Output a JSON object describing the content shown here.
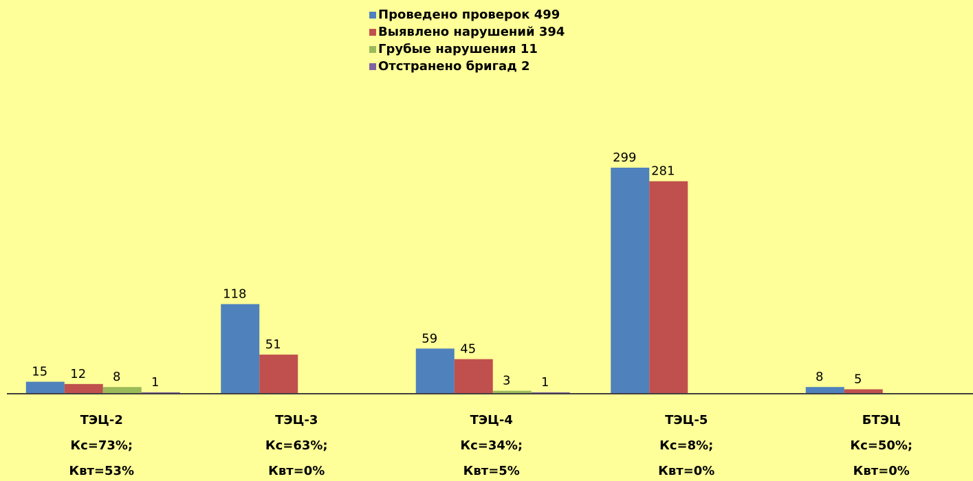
{
  "chart_data": {
    "type": "bar",
    "categories": [
      [
        "ТЭЦ-2",
        "Кс=73%;",
        "Квт=53%"
      ],
      [
        "ТЭЦ-3",
        "Кс=63%;",
        "Квт=0%"
      ],
      [
        "ТЭЦ-4",
        "Кс=34%;",
        "Квт=5%"
      ],
      [
        "ТЭЦ-5",
        "Кс=8%;",
        "Квт=0%"
      ],
      [
        "БТЭЦ",
        "Кс=50%;",
        "Квт=0%"
      ]
    ],
    "series": [
      {
        "name": "Проведено проверок 499",
        "color": "#4f81bd",
        "values": [
          15,
          118,
          59,
          299,
          8
        ]
      },
      {
        "name": "Выявлено нарушений 394",
        "color": "#c0504d",
        "values": [
          12,
          51,
          45,
          281,
          5
        ]
      },
      {
        "name": "Грубые нарушения 11",
        "color": "#9bbb59",
        "values": [
          8,
          null,
          3,
          null,
          null
        ]
      },
      {
        "name": "Отстранено бригад 2",
        "color": "#8064a2",
        "values": [
          1,
          null,
          1,
          null,
          null
        ]
      }
    ],
    "legend": "top"
  }
}
